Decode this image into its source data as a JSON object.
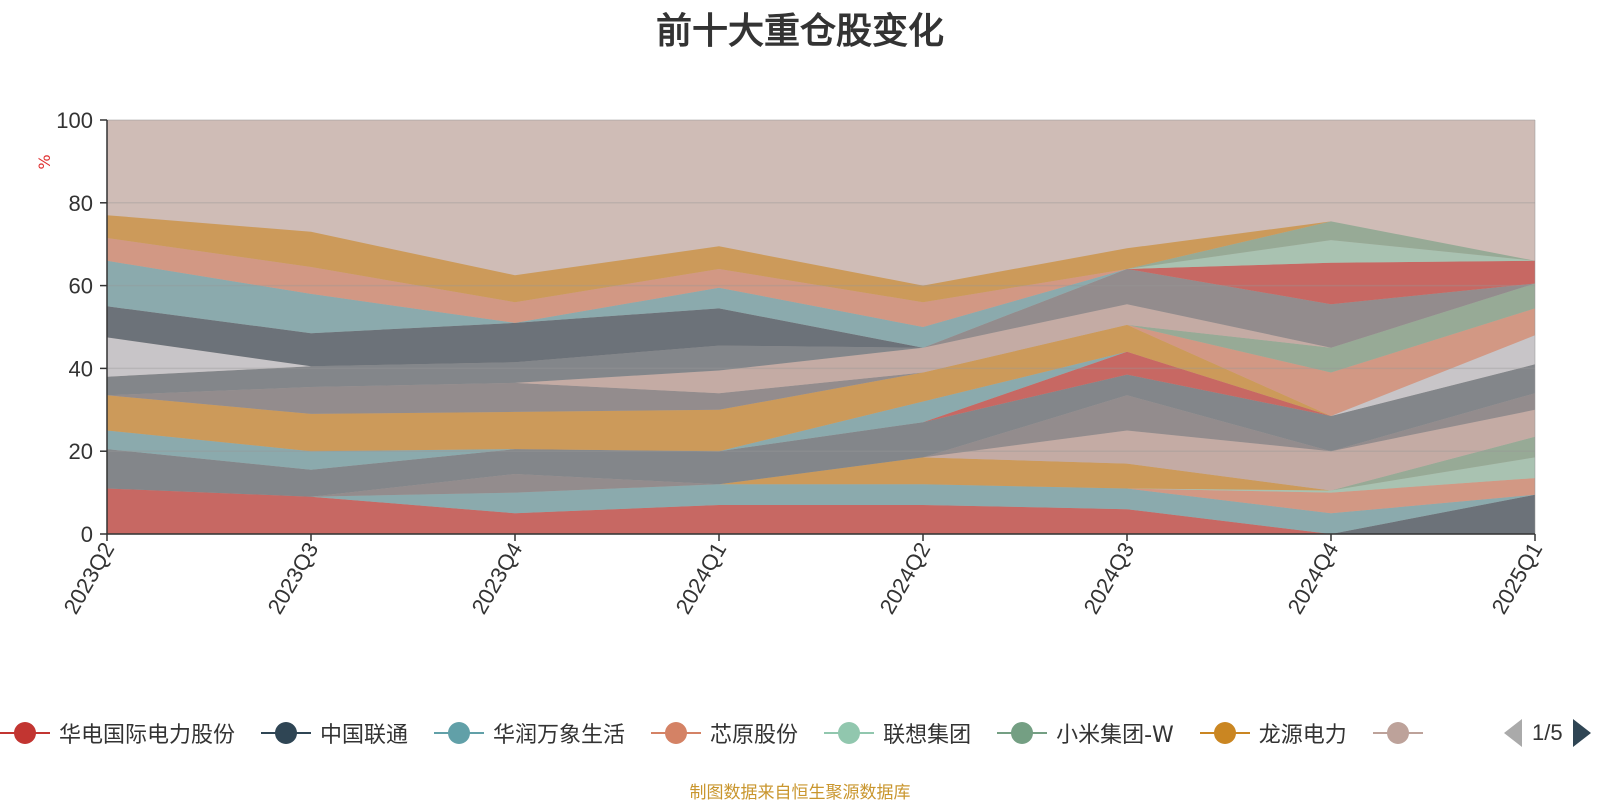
{
  "chart_data": {
    "type": "area",
    "stacked": true,
    "title": "前十大重仓股变化",
    "ylabel": "%",
    "ylim": [
      0,
      100
    ],
    "yticks": [
      "0",
      "20",
      "40",
      "60",
      "80",
      "100"
    ],
    "categories": [
      "2023Q2",
      "2023Q3",
      "2023Q4",
      "2024Q1",
      "2024Q2",
      "2024Q3",
      "2024Q4",
      "2025Q1"
    ],
    "grid": true,
    "legend_position": "bottom",
    "series": [
      {
        "name": "华电国际电力股份",
        "color": "#c23531",
        "values": [
          11,
          9,
          5,
          7,
          7,
          6,
          0,
          0
        ]
      },
      {
        "name": "中国联通",
        "color": "#2f4554",
        "values": [
          0,
          0,
          0,
          0,
          0,
          0,
          0,
          9.5
        ]
      },
      {
        "name": "华润万象生活",
        "color": "#61a0a8",
        "values": [
          0,
          0,
          5,
          5,
          5,
          5,
          5,
          0
        ]
      },
      {
        "name": "芯原股份",
        "color": "#d48265",
        "values": [
          0,
          0,
          0,
          0,
          0,
          0,
          5,
          4
        ]
      },
      {
        "name": "联想集团",
        "color": "#91c7ae",
        "values": [
          0,
          0,
          0,
          0,
          0,
          0,
          0.5,
          5
        ]
      },
      {
        "name": "小米集团-W",
        "color": "#749f83",
        "values": [
          0,
          0,
          0,
          0,
          0,
          0,
          0,
          5
        ]
      },
      {
        "name": "龙源电力",
        "color": "#ca8622",
        "values": [
          0,
          0,
          0,
          0,
          6.5,
          6,
          0,
          0
        ]
      },
      {
        "name": "",
        "color": "#bda29a",
        "values": [
          0,
          0,
          0,
          0,
          0,
          8,
          9.5,
          6.5
        ]
      },
      {
        "name": "",
        "color": "#6e7074",
        "values": [
          0,
          0,
          4.5,
          0,
          0,
          8.5,
          0,
          4
        ]
      },
      {
        "name": "",
        "color": "#546570",
        "values": [
          9.5,
          6.5,
          6,
          8,
          8.5,
          5,
          8.5,
          7
        ]
      },
      {
        "name": "",
        "color": "#c23531",
        "values": [
          0,
          0,
          0,
          0,
          0,
          5.5,
          0,
          0
        ]
      },
      {
        "name": "",
        "color": "#c4ccd3",
        "values": [
          0,
          0,
          0,
          0,
          0,
          0,
          0,
          7
        ]
      },
      {
        "name": "",
        "color": "#61a0a8",
        "values": [
          4.5,
          4.5,
          0,
          0,
          5,
          0,
          0,
          0
        ]
      },
      {
        "name": "",
        "color": "#ca8622",
        "values": [
          8.5,
          9,
          9,
          10,
          7,
          6.5,
          0,
          0
        ]
      },
      {
        "name": "",
        "color": "#d48265",
        "values": [
          0,
          0,
          0,
          0,
          0,
          0,
          10.5,
          6.5
        ]
      },
      {
        "name": "",
        "color": "#749f83",
        "values": [
          0,
          0,
          0,
          0,
          0,
          0,
          6,
          6
        ]
      },
      {
        "name": "",
        "color": "#6e7074",
        "values": [
          0,
          6.5,
          7,
          4,
          0,
          0,
          0,
          0
        ]
      },
      {
        "name": "",
        "color": "#bda29a",
        "values": [
          0,
          0,
          0,
          5.5,
          6,
          5,
          0,
          0
        ]
      },
      {
        "name": "",
        "color": "#546570",
        "values": [
          4.5,
          5,
          5,
          6,
          0,
          0,
          0,
          0
        ]
      },
      {
        "name": "",
        "color": "#c4ccd3",
        "values": [
          9.5,
          0,
          0,
          0,
          0,
          0,
          0,
          0
        ]
      },
      {
        "name": "",
        "color": "#2f4554",
        "values": [
          7.5,
          8,
          9.5,
          9,
          0,
          0,
          0,
          0
        ]
      },
      {
        "name": "",
        "color": "#6e7074",
        "values": [
          0,
          0,
          0,
          0,
          0,
          8.5,
          10.5,
          0
        ]
      },
      {
        "name": "",
        "color": "#c23531",
        "values": [
          0,
          0,
          0,
          0,
          0,
          0,
          10,
          5.5
        ]
      },
      {
        "name": "",
        "color": "#91c7ae",
        "values": [
          0,
          0,
          0,
          0,
          0,
          0,
          5.5,
          0
        ]
      },
      {
        "name": "",
        "color": "#749f83",
        "values": [
          0,
          0,
          0,
          0,
          0,
          0,
          4.5,
          0
        ]
      },
      {
        "name": "",
        "color": "#61a0a8",
        "values": [
          11,
          9.5,
          0,
          5,
          5,
          0,
          0,
          0
        ]
      },
      {
        "name": "",
        "color": "#d48265",
        "values": [
          5.5,
          6.5,
          5,
          4.5,
          6,
          0,
          0,
          0
        ]
      },
      {
        "name": "",
        "color": "#ca8622",
        "values": [
          5.5,
          8.5,
          6.5,
          5.5,
          4,
          5,
          0,
          0
        ]
      }
    ]
  },
  "legend": {
    "page_text": "1/5",
    "prev_icon": "triangle-left-icon",
    "next_icon": "triangle-right-icon"
  },
  "source_note": "制图数据来自恒生聚源数据库"
}
